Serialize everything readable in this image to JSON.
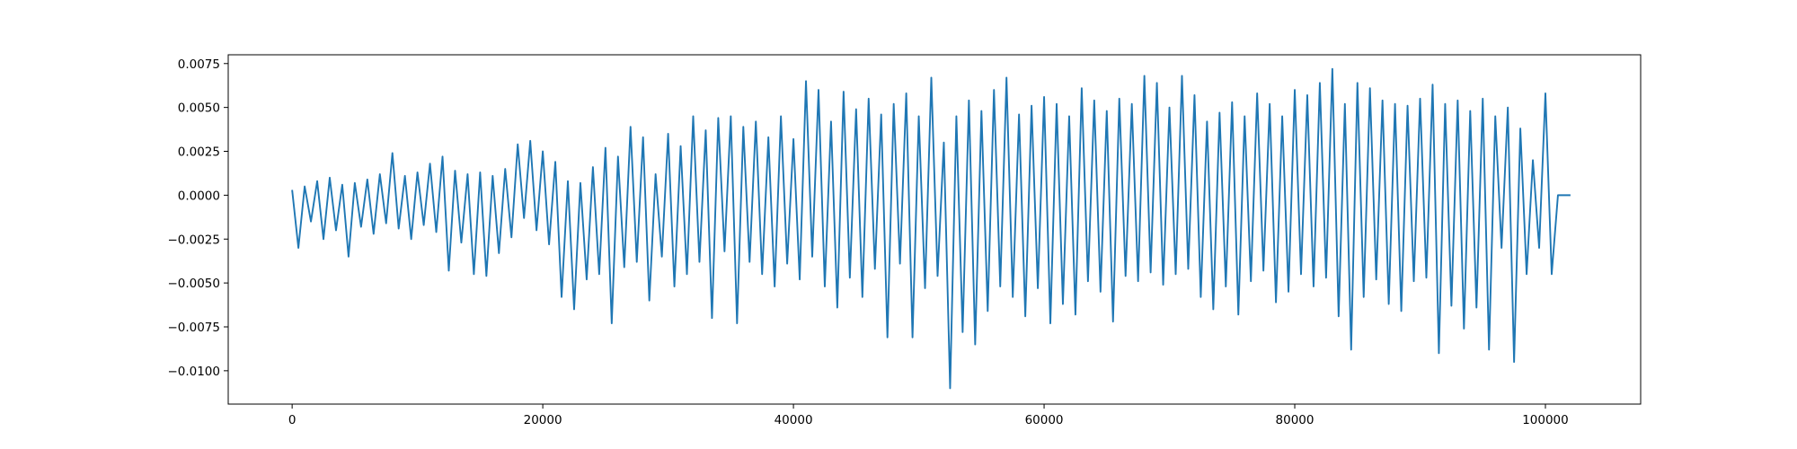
{
  "chart_data": {
    "type": "line",
    "x": [
      0,
      500,
      1000,
      1500,
      2000,
      2500,
      3000,
      3500,
      4000,
      4500,
      5000,
      5500,
      6000,
      6500,
      7000,
      7500,
      8000,
      8500,
      9000,
      9500,
      10000,
      10500,
      11000,
      11500,
      12000,
      12500,
      13000,
      13500,
      14000,
      14500,
      15000,
      15500,
      16000,
      16500,
      17000,
      17500,
      18000,
      18500,
      19000,
      19500,
      20000,
      20500,
      21000,
      21500,
      22000,
      22500,
      23000,
      23500,
      24000,
      24500,
      25000,
      25500,
      26000,
      26500,
      27000,
      27500,
      28000,
      28500,
      29000,
      29500,
      30000,
      30500,
      31000,
      31500,
      32000,
      32500,
      33000,
      33500,
      34000,
      34500,
      35000,
      35500,
      36000,
      36500,
      37000,
      37500,
      38000,
      38500,
      39000,
      39500,
      40000,
      40500,
      41000,
      41500,
      42000,
      42500,
      43000,
      43500,
      44000,
      44500,
      45000,
      45500,
      46000,
      46500,
      47000,
      47500,
      48000,
      48500,
      49000,
      49500,
      50000,
      50500,
      51000,
      51500,
      52000,
      52500,
      53000,
      53500,
      54000,
      54500,
      55000,
      55500,
      56000,
      56500,
      57000,
      57500,
      58000,
      58500,
      59000,
      59500,
      60000,
      60500,
      61000,
      61500,
      62000,
      62500,
      63000,
      63500,
      64000,
      64500,
      65000,
      65500,
      66000,
      66500,
      67000,
      67500,
      68000,
      68500,
      69000,
      69500,
      70000,
      70500,
      71000,
      71500,
      72000,
      72500,
      73000,
      73500,
      74000,
      74500,
      75000,
      75500,
      76000,
      76500,
      77000,
      77500,
      78000,
      78500,
      79000,
      79500,
      80000,
      80500,
      81000,
      81500,
      82000,
      82500,
      83000,
      83500,
      84000,
      84500,
      85000,
      85500,
      86000,
      86500,
      87000,
      87500,
      88000,
      88500,
      89000,
      89500,
      90000,
      90500,
      91000,
      91500,
      92000,
      92500,
      93000,
      93500,
      94000,
      94500,
      95000,
      95500,
      96000,
      96500,
      97000,
      97500,
      98000,
      98500,
      99000,
      99500,
      100000,
      100500,
      101000,
      101500,
      102000
    ],
    "series": [
      {
        "color": "#1f77b4",
        "values": [
          0.0003,
          -0.003,
          0.0005,
          -0.0015,
          0.0008,
          -0.0025,
          0.001,
          -0.002,
          0.0006,
          -0.0035,
          0.0007,
          -0.0018,
          0.0009,
          -0.0022,
          0.0012,
          -0.0016,
          0.0024,
          -0.0019,
          0.0011,
          -0.0025,
          0.0013,
          -0.0017,
          0.0018,
          -0.0021,
          0.0022,
          -0.0043,
          0.0014,
          -0.0027,
          0.0012,
          -0.0045,
          0.0013,
          -0.0046,
          0.0011,
          -0.0033,
          0.0015,
          -0.0024,
          0.0029,
          -0.0013,
          0.0031,
          -0.002,
          0.0025,
          -0.0028,
          0.0019,
          -0.0058,
          0.0008,
          -0.0065,
          0.0007,
          -0.0048,
          0.0016,
          -0.0045,
          0.0027,
          -0.0073,
          0.0022,
          -0.0041,
          0.0039,
          -0.0038,
          0.0033,
          -0.006,
          0.0012,
          -0.0035,
          0.0035,
          -0.0052,
          0.0028,
          -0.0045,
          0.0045,
          -0.0038,
          0.0037,
          -0.007,
          0.0044,
          -0.0032,
          0.0045,
          -0.0073,
          0.0039,
          -0.0038,
          0.0042,
          -0.0045,
          0.0033,
          -0.0052,
          0.0045,
          -0.0039,
          0.0032,
          -0.0048,
          0.0065,
          -0.0035,
          0.006,
          -0.0052,
          0.0042,
          -0.0064,
          0.0059,
          -0.0047,
          0.0049,
          -0.0058,
          0.0055,
          -0.0042,
          0.0046,
          -0.0081,
          0.0052,
          -0.0039,
          0.0058,
          -0.0081,
          0.0045,
          -0.0053,
          0.0067,
          -0.0046,
          0.003,
          -0.011,
          0.0045,
          -0.0078,
          0.0054,
          -0.0085,
          0.0048,
          -0.0066,
          0.006,
          -0.0052,
          0.0067,
          -0.0058,
          0.0046,
          -0.0069,
          0.0051,
          -0.0053,
          0.0056,
          -0.0073,
          0.0052,
          -0.0062,
          0.0045,
          -0.0068,
          0.0061,
          -0.0049,
          0.0054,
          -0.0055,
          0.0048,
          -0.0072,
          0.0055,
          -0.0046,
          0.0052,
          -0.0049,
          0.0068,
          -0.0044,
          0.0064,
          -0.0051,
          0.005,
          -0.0045,
          0.0068,
          -0.0042,
          0.0057,
          -0.0058,
          0.0042,
          -0.0065,
          0.0047,
          -0.0052,
          0.0053,
          -0.0068,
          0.0045,
          -0.0049,
          0.0058,
          -0.0043,
          0.0052,
          -0.0061,
          0.0045,
          -0.0055,
          0.006,
          -0.0045,
          0.0057,
          -0.0052,
          0.0064,
          -0.0047,
          0.0072,
          -0.0069,
          0.0052,
          -0.0088,
          0.0064,
          -0.0058,
          0.0061,
          -0.0048,
          0.0054,
          -0.0062,
          0.0052,
          -0.0066,
          0.0051,
          -0.0049,
          0.0055,
          -0.0047,
          0.0063,
          -0.009,
          0.0052,
          -0.0063,
          0.0054,
          -0.0076,
          0.0048,
          -0.0064,
          0.0055,
          -0.0088,
          0.0045,
          -0.003,
          0.005,
          -0.0095,
          0.0038,
          -0.0045,
          0.002,
          -0.003,
          0.0058,
          -0.0045,
          0.0,
          0.0,
          0.0
        ]
      }
    ],
    "xlim": [
      -5100,
      107600
    ],
    "xticks": [
      0,
      20000,
      40000,
      60000,
      80000,
      100000
    ],
    "ylim": [
      -0.0119,
      0.008
    ],
    "yticks": [
      {
        "value": -0.01,
        "label": "−0.0100"
      },
      {
        "value": -0.0075,
        "label": "−0.0075"
      },
      {
        "value": -0.005,
        "label": "−0.0050"
      },
      {
        "value": -0.0025,
        "label": "−0.0025"
      },
      {
        "value": 0,
        "label": "0.0000"
      },
      {
        "value": 0.0025,
        "label": "0.0025"
      },
      {
        "value": 0.005,
        "label": "0.0050"
      },
      {
        "value": 0.0075,
        "label": "0.0075"
      }
    ]
  }
}
